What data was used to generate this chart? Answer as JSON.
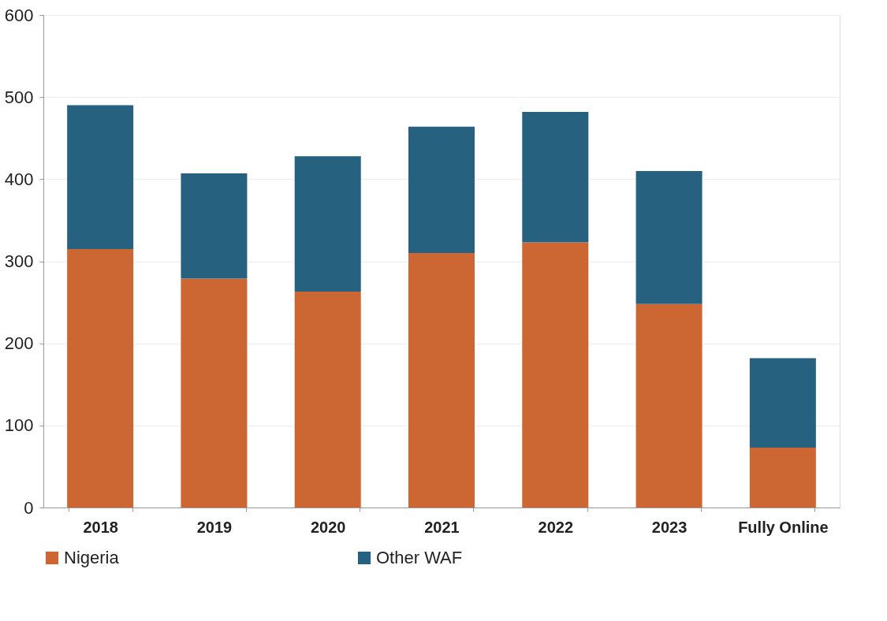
{
  "chart_data": {
    "type": "bar",
    "stacked": true,
    "categories": [
      "2018",
      "2019",
      "2020",
      "2021",
      "2022",
      "2023",
      "Fully Online"
    ],
    "series": [
      {
        "name": "Nigeria",
        "color": "#cc6633",
        "values": [
          315,
          279,
          263,
          310,
          323,
          248,
          73
        ]
      },
      {
        "name": "Other WAF",
        "color": "#276180",
        "values": [
          175,
          128,
          165,
          154,
          159,
          162,
          109
        ]
      }
    ],
    "ylim": [
      0,
      600
    ],
    "yticks": [
      0,
      100,
      200,
      300,
      400,
      500,
      600
    ],
    "grid": "y",
    "legend": "bottom"
  }
}
